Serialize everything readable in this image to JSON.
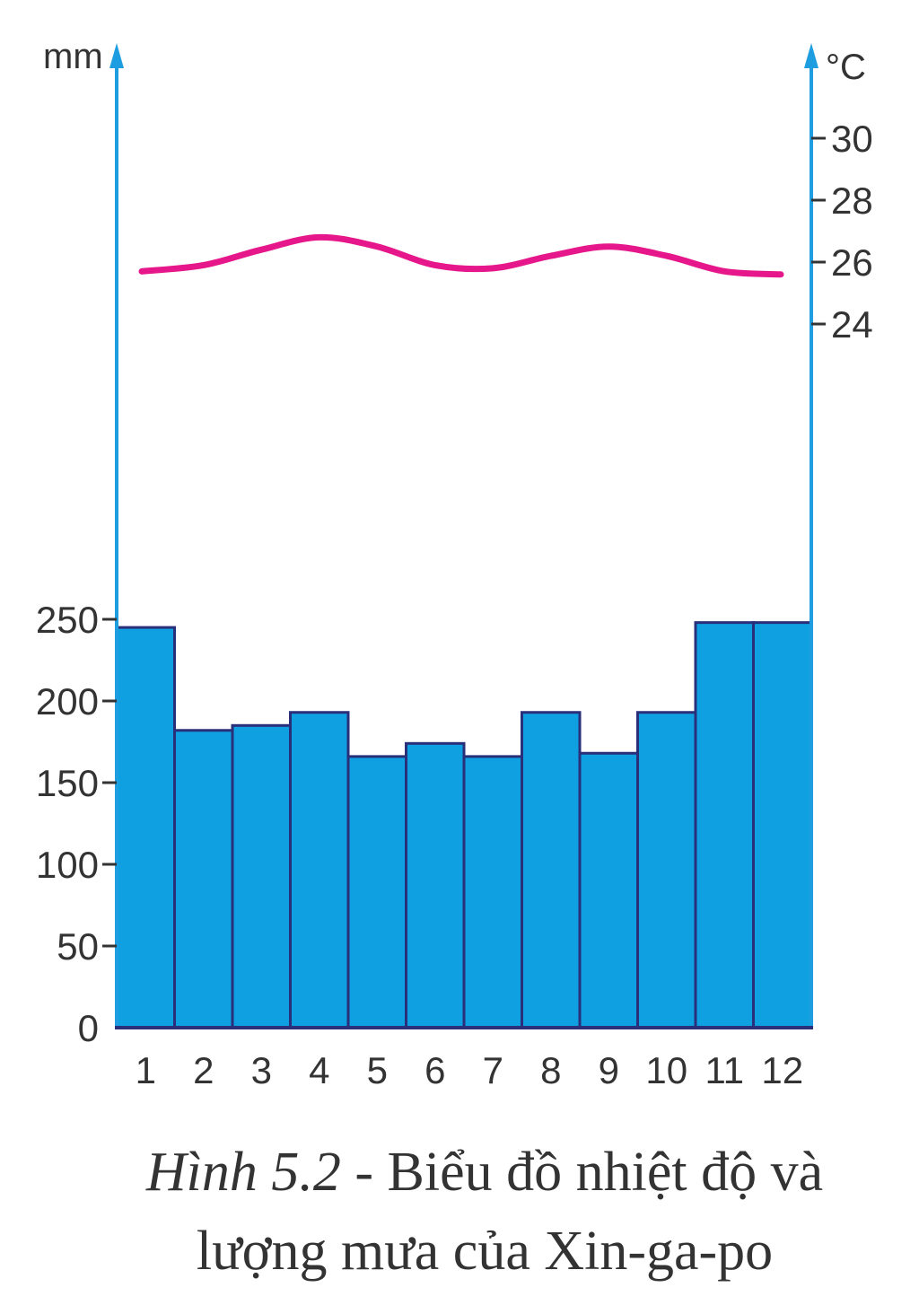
{
  "chart_data": {
    "type": "bar+line",
    "categories": [
      "1",
      "2",
      "3",
      "4",
      "5",
      "6",
      "7",
      "8",
      "9",
      "10",
      "11",
      "12"
    ],
    "precipitation": {
      "unit": "mm",
      "values": [
        245,
        182,
        185,
        193,
        166,
        174,
        166,
        193,
        168,
        193,
        248,
        248
      ],
      "ylim": [
        0,
        250
      ],
      "ticks": [
        0,
        50,
        100,
        150,
        200,
        250
      ],
      "color": "#0FA0E2"
    },
    "temperature": {
      "unit": "°C",
      "values": [
        25.7,
        25.9,
        26.4,
        26.8,
        26.5,
        25.9,
        25.8,
        26.2,
        26.5,
        26.2,
        25.7,
        25.6
      ],
      "ticks": [
        24,
        26,
        28,
        30
      ],
      "color": "#E6178A"
    },
    "axis_color": "#1E9DE0",
    "bar_edge_color": "#2A2F7A"
  },
  "caption": {
    "label": "Hình 5.2",
    "line1": " - Biểu đồ nhiệt độ và",
    "line2": "lượng mưa của Xin-ga-po"
  }
}
